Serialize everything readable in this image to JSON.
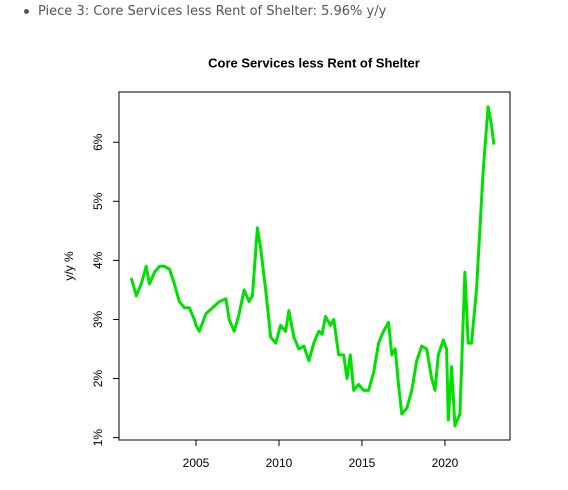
{
  "note": "Piece 3: Core Services less Rent of Shelter: 5.96% y/y",
  "chart_data": {
    "type": "line",
    "title": "Core Services less Rent of Shelter",
    "y_label": "y/y %",
    "xlim": [
      2000.36,
      2023.92
    ],
    "xticks": [
      2005,
      2010,
      2015,
      2020
    ],
    "ylim": [
      0.96,
      6.85
    ],
    "yticks": [
      {
        "value": 1,
        "label": "1%"
      },
      {
        "value": 2,
        "label": "2%"
      },
      {
        "value": 3,
        "label": "3%"
      },
      {
        "value": 4,
        "label": "4%"
      },
      {
        "value": 5,
        "label": "5%"
      },
      {
        "value": 6,
        "label": "6%"
      }
    ],
    "series": [
      {
        "color": "#00e000",
        "x": [
          2001.1,
          2001.4,
          2001.7,
          2002.0,
          2002.2,
          2002.5,
          2002.8,
          2003.1,
          2003.4,
          2003.7,
          2004.0,
          2004.3,
          2004.6,
          2004.9,
          2005.0,
          2005.2,
          2005.6,
          2006.0,
          2006.4,
          2006.8,
          2007.0,
          2007.3,
          2007.6,
          2007.9,
          2008.2,
          2008.4,
          2008.7,
          2008.9,
          2009.2,
          2009.5,
          2009.8,
          2010.1,
          2010.4,
          2010.6,
          2010.9,
          2011.2,
          2011.5,
          2011.8,
          2012.1,
          2012.4,
          2012.6,
          2012.8,
          2013.1,
          2013.3,
          2013.6,
          2013.9,
          2014.1,
          2014.3,
          2014.5,
          2014.8,
          2015.1,
          2015.4,
          2015.7,
          2016.0,
          2016.3,
          2016.6,
          2016.8,
          2017.0,
          2017.2,
          2017.4,
          2017.7,
          2018.0,
          2018.3,
          2018.6,
          2018.9,
          2019.2,
          2019.4,
          2019.6,
          2019.9,
          2020.1,
          2020.2,
          2020.4,
          2020.6,
          2020.9,
          2021.2,
          2021.4,
          2021.6,
          2021.9,
          2022.1,
          2022.3,
          2022.6,
          2022.8,
          2022.95
        ],
        "values": [
          3.7,
          3.4,
          3.6,
          3.9,
          3.6,
          3.8,
          3.9,
          3.9,
          3.85,
          3.6,
          3.3,
          3.2,
          3.2,
          3.0,
          2.9,
          2.8,
          3.1,
          3.2,
          3.3,
          3.35,
          3.0,
          2.8,
          3.1,
          3.5,
          3.3,
          3.4,
          4.55,
          4.2,
          3.5,
          2.7,
          2.6,
          2.9,
          2.8,
          3.15,
          2.7,
          2.5,
          2.55,
          2.3,
          2.6,
          2.8,
          2.75,
          3.05,
          2.9,
          3.0,
          2.4,
          2.4,
          2.0,
          2.4,
          1.8,
          1.9,
          1.8,
          1.8,
          2.1,
          2.6,
          2.8,
          2.95,
          2.4,
          2.5,
          1.9,
          1.4,
          1.5,
          1.8,
          2.3,
          2.55,
          2.5,
          2.0,
          1.8,
          2.4,
          2.65,
          2.5,
          1.3,
          2.2,
          1.2,
          1.4,
          3.8,
          2.6,
          2.6,
          3.5,
          4.5,
          5.5,
          6.6,
          6.3,
          5.96
        ]
      }
    ]
  }
}
